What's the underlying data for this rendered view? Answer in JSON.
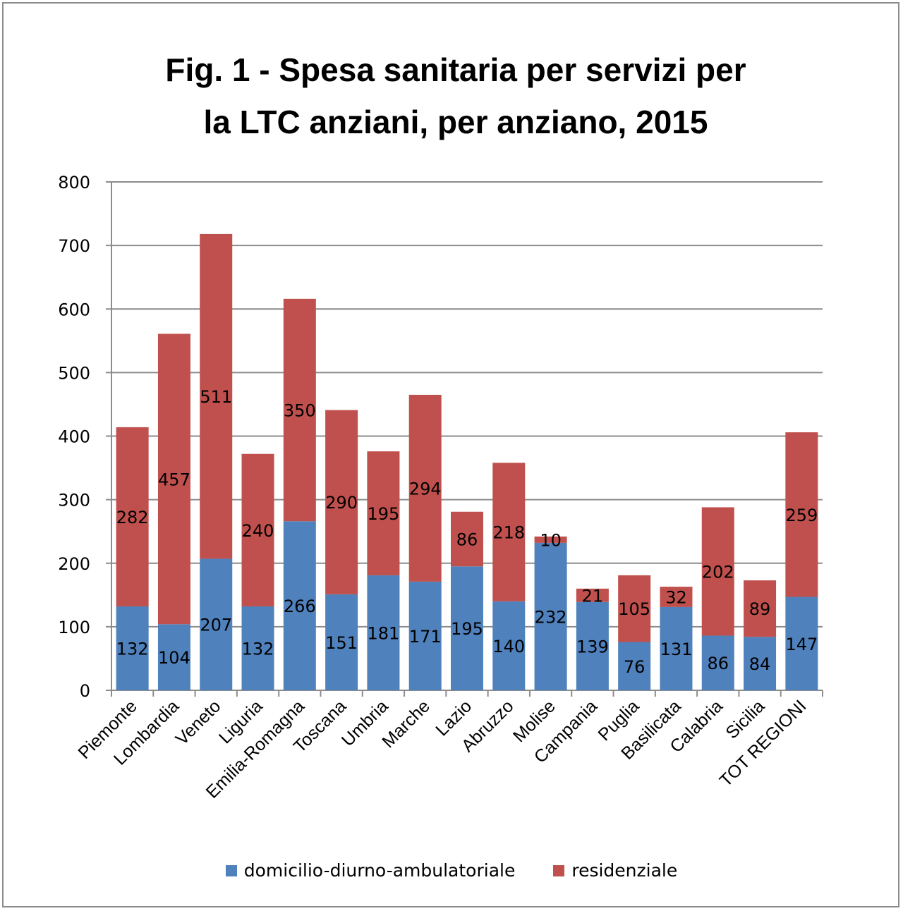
{
  "chart_data": {
    "type": "bar",
    "stacked": true,
    "title_line1": "Fig. 1 - Spesa sanitaria per servizi per",
    "title_line2": "la LTC anziani,  per anziano, 2015",
    "categories": [
      "Piemonte",
      "Lombardia",
      "Veneto",
      "Liguria",
      "Emilia-Romagna",
      "Toscana",
      "Umbria",
      "Marche",
      "Lazio",
      "Abruzzo",
      "Molise",
      "Campania",
      "Puglia",
      "Basilicata",
      "Calabria",
      "Sicilia",
      "TOT REGIONI"
    ],
    "series": [
      {
        "name": "domicilio-diurno-ambulatoriale",
        "color": "#4f81bd",
        "values": [
          132,
          104,
          207,
          132,
          266,
          151,
          181,
          171,
          195,
          140,
          232,
          139,
          76,
          131,
          86,
          84,
          147
        ]
      },
      {
        "name": "residenziale",
        "color": "#c0504d",
        "values": [
          282,
          457,
          511,
          240,
          350,
          290,
          195,
          294,
          86,
          218,
          10,
          21,
          105,
          32,
          202,
          89,
          259
        ]
      }
    ],
    "ylim": [
      0,
      800
    ],
    "yticks": [
      0,
      100,
      200,
      300,
      400,
      500,
      600,
      700,
      800
    ],
    "grid": true,
    "legend_position": "bottom"
  }
}
